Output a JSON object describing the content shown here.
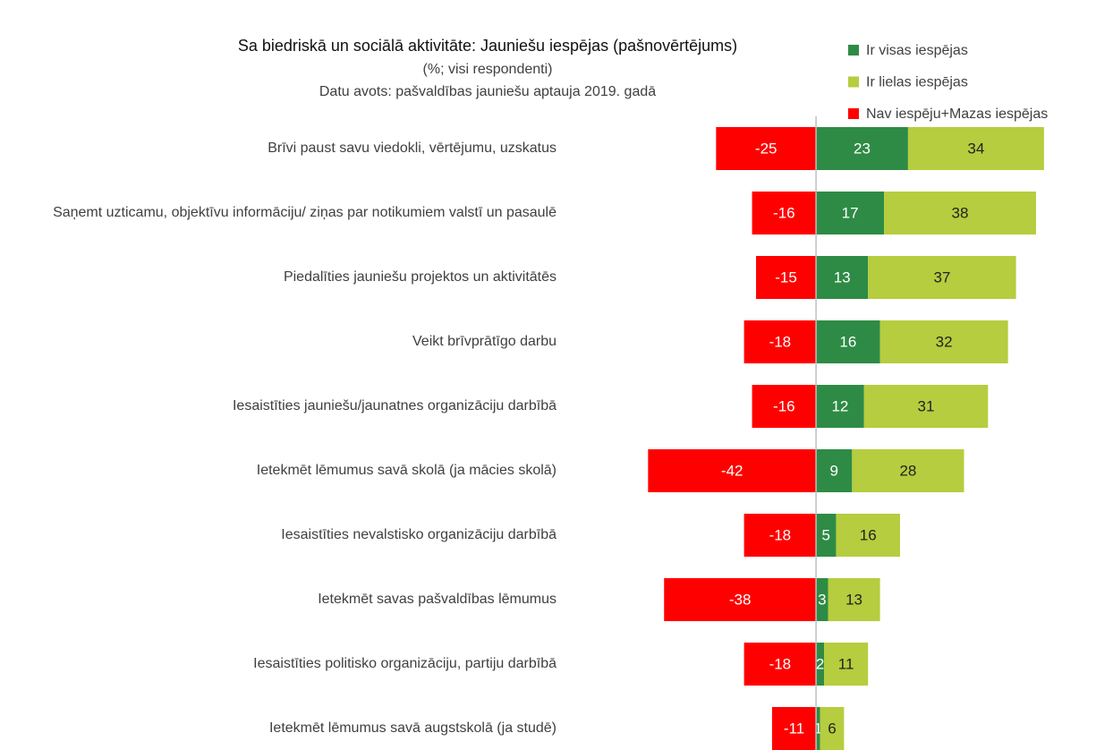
{
  "chart_data": {
    "type": "diverging_stacked_bar",
    "title": "Sa biedriskā un sociālā aktivitāte: Jauniešu iespējas (pašnovērtējums)",
    "subtitle": [
      "(%; visi respondenti)",
      "Datu avots: pašvaldības jauniešu aptauja 2019. gadā"
    ],
    "categories": [
      "Brīvi paust savu viedokli, vērtējumu, uzskatus",
      "Saņemt uzticamu, objektīvu informāciju/ ziņas par notikumiem valstī un pasaulē",
      "Piedalīties jauniešu projektos un aktivitātēs",
      "Veikt brīvprātīgo darbu",
      "Iesaistīties jauniešu/jaunatnes organizāciju darbībā",
      "Ietekmēt lēmumus savā skolā (ja mācies skolā)",
      "Iesaistīties nevalstisko organizāciju darbībā",
      "Ietekmēt savas pašvaldības lēmumus",
      "Iesaistīties politisko organizāciju, partiju darbībā",
      "Ietekmēt lēmumus savā augstskolā (ja studē)"
    ],
    "series": [
      {
        "name": "Ir visas iespējas",
        "color": "#2e8b45",
        "label_color": "#ffffff",
        "values": [
          23,
          17,
          13,
          16,
          12,
          9,
          5,
          3,
          2,
          1
        ]
      },
      {
        "name": "Ir lielas iespējas",
        "color": "#b5cd3e",
        "label_color": "#222222",
        "values": [
          34,
          38,
          37,
          32,
          31,
          28,
          16,
          13,
          11,
          6
        ]
      },
      {
        "name": "Nav iespēju+Mazas iespējas",
        "color": "#ff0000",
        "label_color": "#ffffff",
        "values": [
          -25,
          -16,
          -15,
          -18,
          -16,
          -42,
          -18,
          -38,
          -18,
          -11
        ]
      }
    ],
    "xlim": [
      -47,
      70
    ],
    "legend": "top-right"
  }
}
